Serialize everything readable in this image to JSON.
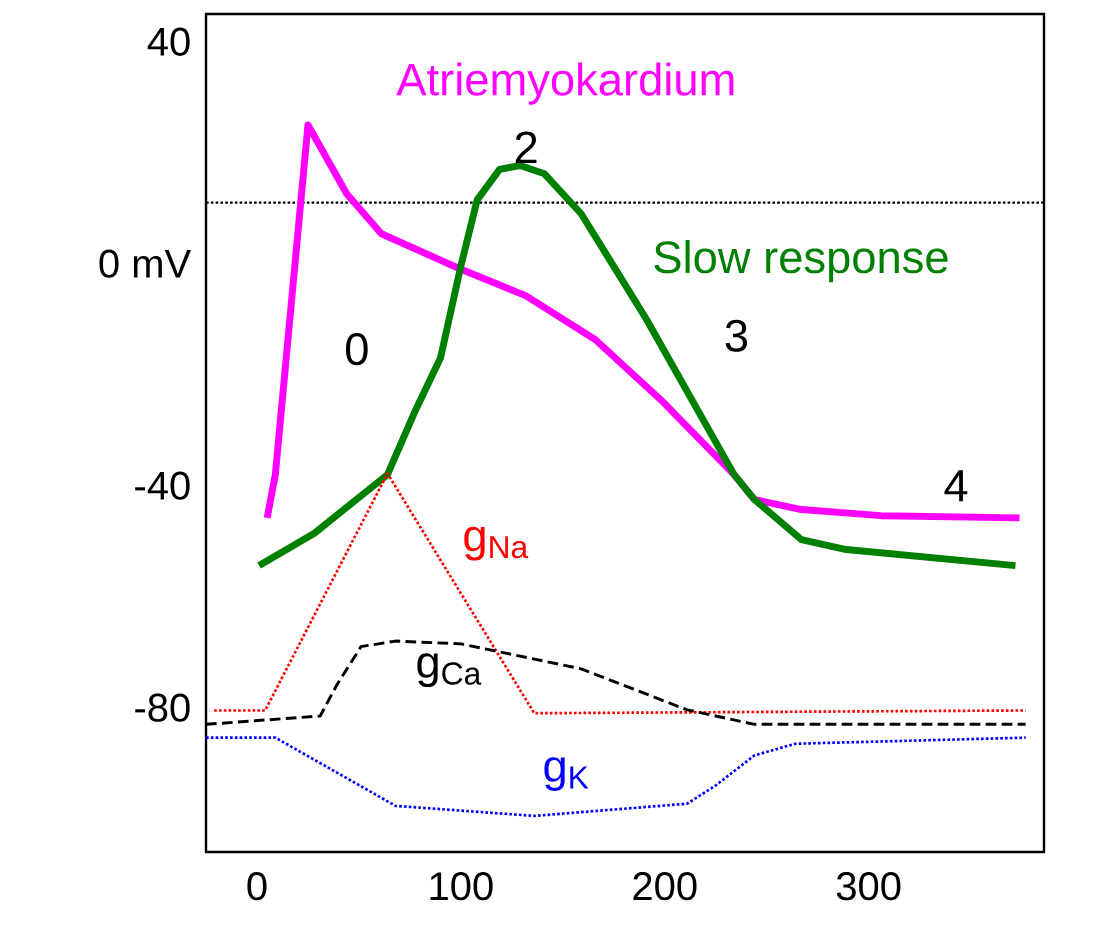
{
  "chart_data": {
    "type": "line",
    "xlim": [
      -25,
      386
    ],
    "ylim": [
      -106,
      45
    ],
    "xticks": [
      0,
      100,
      200,
      300
    ],
    "yticks": [
      40,
      {
        "value": 0,
        "label": "0 mV"
      },
      -40,
      -80
    ],
    "grid": false,
    "legend": false,
    "marker": "none",
    "series": [
      {
        "name": "Atriemyokardium",
        "color": "#ff00ff",
        "line_style": "solid",
        "x": [
          5,
          9,
          25,
          44,
          61,
          100,
          132,
          166,
          198,
          234,
          244,
          267,
          306,
          374
        ],
        "values": [
          -45.8,
          -38,
          25,
          12.6,
          5.4,
          -1,
          -5.8,
          -13.7,
          -24.5,
          -38,
          -42.5,
          -44.3,
          -45.4,
          -45.8
        ]
      },
      {
        "name": "Slow response",
        "color": "#008000",
        "line_style": "solid",
        "x": [
          1,
          28,
          64,
          77,
          90,
          100,
          108,
          119,
          129,
          141,
          159,
          191,
          234,
          244,
          267,
          289,
          372
        ],
        "values": [
          -54.4,
          -48.6,
          -38,
          -27,
          -17,
          -0.4,
          11.5,
          17,
          17.7,
          16.2,
          9,
          -10,
          -38,
          -42.5,
          -49.7,
          -51.5,
          -54.4
        ]
      },
      {
        "name": "g$_{Na}$",
        "color": "#ff0000",
        "line_style": "dotted",
        "x": [
          -21,
          4,
          64,
          136,
          377
        ],
        "values": [
          -80.5,
          -80.5,
          -37.8,
          -81,
          -80.5
        ]
      },
      {
        "name": "g$_{Ca}$",
        "color": "#000000",
        "line_style": "dashed",
        "x": [
          -25,
          31,
          39,
          51,
          68,
          100,
          159,
          211,
          244,
          377
        ],
        "values": [
          -83,
          -81.5,
          -76,
          -69,
          -68,
          -68.5,
          -73,
          -80.4,
          -83,
          -83
        ]
      },
      {
        "name": "g$_{K}$",
        "color": "#0000ff",
        "line_style": "dotted",
        "x": [
          -25,
          9,
          68,
          136,
          211,
          225,
          244,
          264,
          377
        ],
        "values": [
          -85.4,
          -85.4,
          -97.7,
          -99.5,
          -97.3,
          -94,
          -88.6,
          -86.5,
          -85.4
        ]
      }
    ],
    "ref_lines": [
      {
        "axis": "y",
        "value": 11,
        "color": "#000000",
        "line_style": "dotted"
      }
    ],
    "annotations": [
      "0",
      "2",
      "3",
      "4"
    ]
  }
}
